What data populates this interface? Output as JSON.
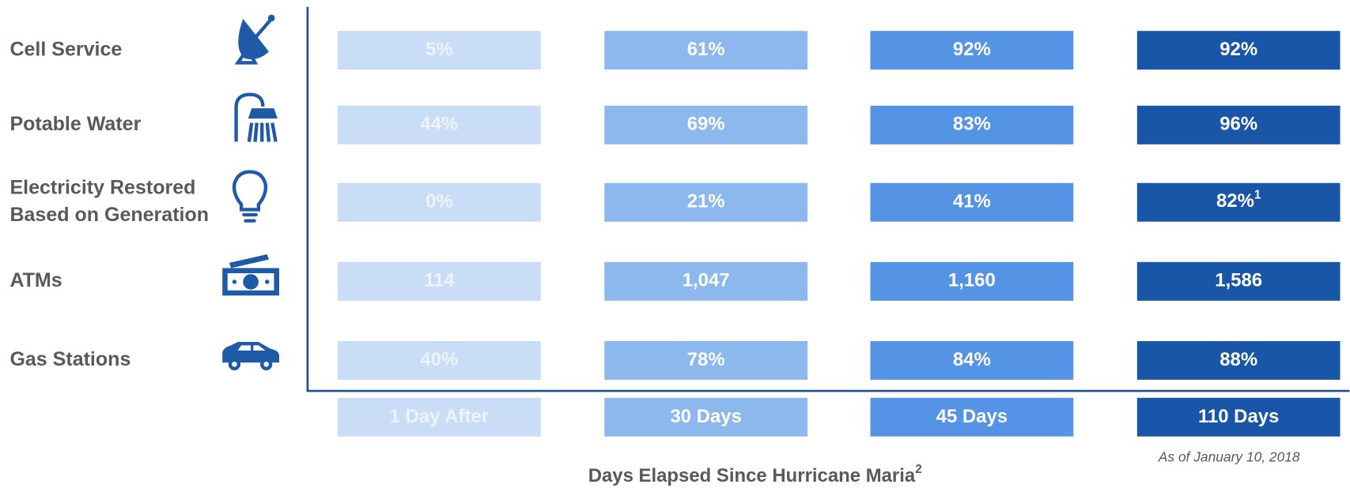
{
  "table": {
    "rows": [
      {
        "label": [
          "Cell Service"
        ],
        "cells": [
          "5%",
          "61%",
          "92%",
          "92%"
        ]
      },
      {
        "label": [
          "Potable Water"
        ],
        "cells": [
          "44%",
          "69%",
          "83%",
          "96%"
        ]
      },
      {
        "label": [
          "Electricity Restored",
          "Based on Generation"
        ],
        "cells": [
          "0%",
          "21%",
          "41%",
          {
            "text": "82%",
            "sup": "1"
          }
        ]
      },
      {
        "label": [
          "ATMs"
        ],
        "cells": [
          "114",
          "1,047",
          "1,160",
          "1,586"
        ]
      },
      {
        "label": [
          "Gas Stations"
        ],
        "cells": [
          "40%",
          "78%",
          "84%",
          "88%"
        ]
      }
    ],
    "columns": [
      "1 Day After",
      "30 Days",
      "45 Days",
      "110 Days"
    ],
    "column_colors": [
      "#c9ddf6",
      "#8db8ee",
      "#5594e4",
      "#1a56a8"
    ],
    "note": "As of January 10, 2018",
    "title": {
      "text": "Days Elapsed Since Hurricane Maria",
      "sup": "2"
    }
  }
}
